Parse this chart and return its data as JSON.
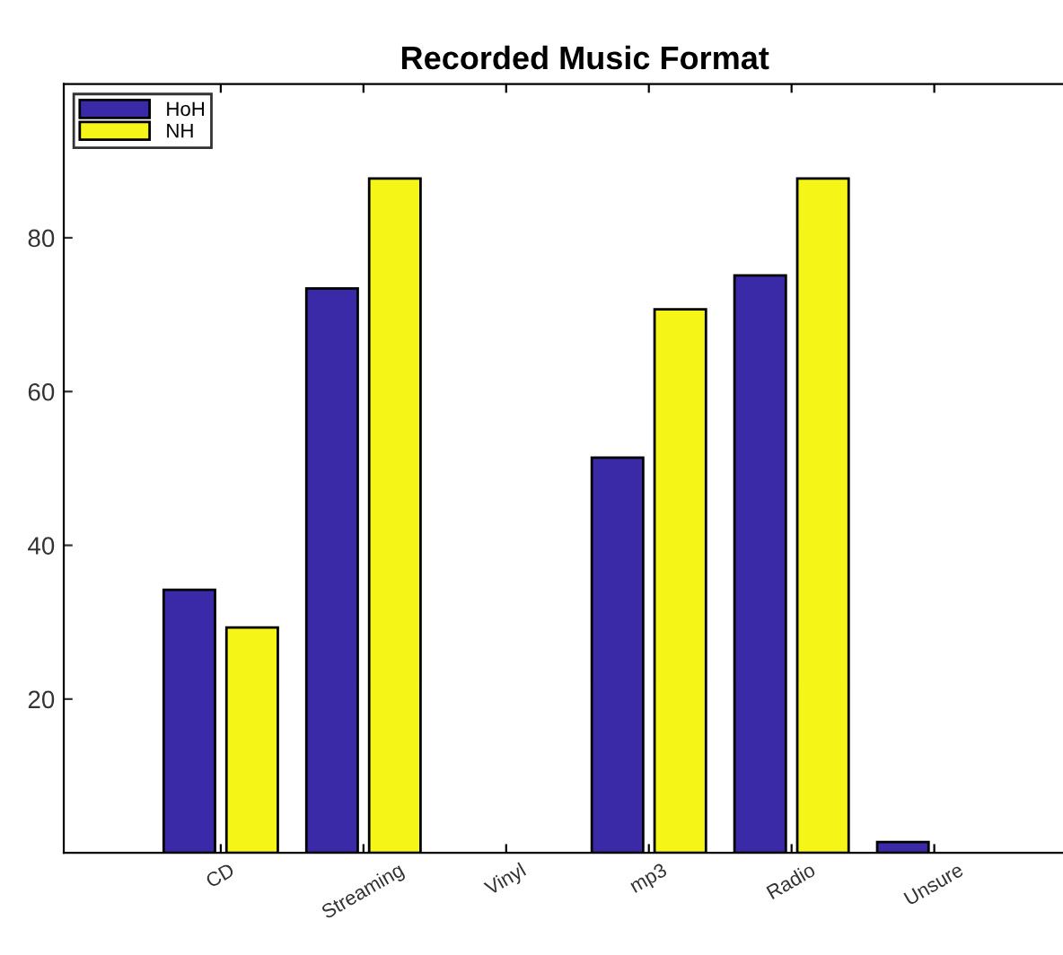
{
  "chart_data": {
    "type": "bar",
    "title": "Recorded Music Format",
    "categories": [
      "CD",
      "Streaming",
      "Vinyl",
      "mp3",
      "Radio",
      "Unsure"
    ],
    "series": [
      {
        "name": "HoH",
        "color": "#3b2aa8",
        "values": [
          34.2,
          73.4,
          0,
          51.4,
          75.1,
          1.4
        ]
      },
      {
        "name": "NH",
        "color": "#f5f518",
        "values": [
          29.3,
          87.7,
          0,
          70.7,
          87.7,
          0
        ]
      }
    ],
    "ylim": [
      0,
      100
    ],
    "yticks": [
      20,
      40,
      60,
      80
    ],
    "legend": "top left",
    "grid": false
  }
}
